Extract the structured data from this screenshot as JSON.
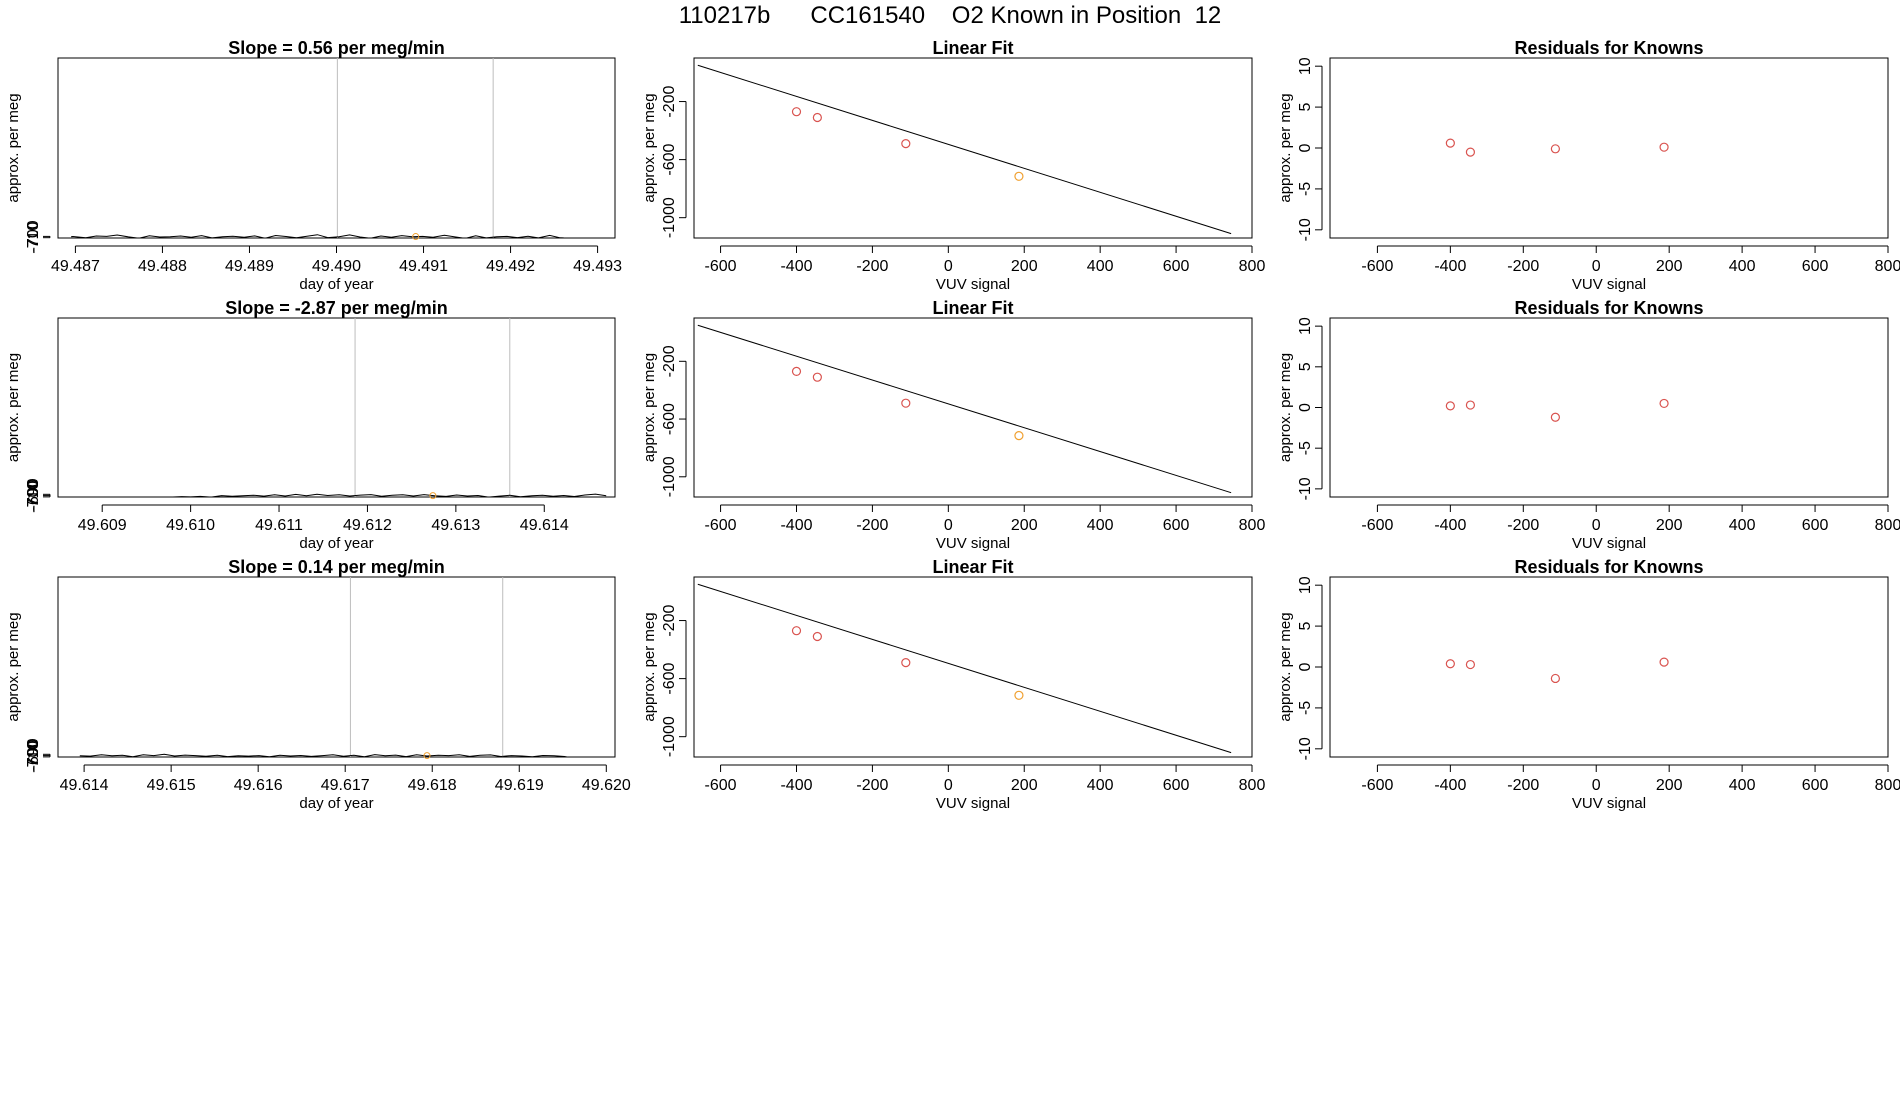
{
  "header": {
    "title": "110217b      CC161540    O2 Known in Position  12"
  },
  "colors": {
    "line": "#000000",
    "known_point": "#d9534f",
    "sample_point": "#f0a030",
    "marker_line": "#bdbdbd"
  },
  "chart_data": [
    {
      "type": "line",
      "title": "Slope =  0.56  per meg/min",
      "xlabel": "day of year",
      "ylabel": "approx. per meg",
      "xlim": [
        49.4868,
        49.4932
      ],
      "ylim": [
        -712.5,
        690.5
      ],
      "xticks": [
        "49.487",
        "49.488",
        "49.489",
        "49.490",
        "49.491",
        "49.492",
        "49.493"
      ],
      "xtick_values": [
        49.487,
        49.488,
        49.489,
        49.49,
        49.491,
        49.492,
        49.493
      ],
      "yticks": [
        "-710",
        "-700"
      ],
      "ytick_values": [
        -710,
        -700
      ],
      "vlines": [
        49.49001,
        49.4918
      ],
      "highlight_point": {
        "x": 49.49091,
        "y": -701.2
      },
      "x": [
        49.48695,
        49.48697,
        49.48712,
        49.48724,
        49.48736,
        49.48748,
        49.48761,
        49.48773,
        49.48785,
        49.48797,
        49.48809,
        49.48821,
        49.48833,
        49.48845,
        49.48857,
        49.48869,
        49.48881,
        49.48894,
        49.48906,
        49.48918,
        49.4893,
        49.48942,
        49.48954,
        49.48966,
        49.48978,
        49.4899,
        49.49003,
        49.49015,
        49.49027,
        49.49039,
        49.49051,
        49.49063,
        49.49075,
        49.49087,
        49.49099,
        49.49111,
        49.49124,
        49.49136,
        49.49148,
        49.4916,
        49.49172,
        49.49184,
        49.49196,
        49.49208,
        49.4922,
        49.49232,
        49.49245,
        49.49257,
        49.49261
      ],
      "y": [
        -702,
        -701,
        -711,
        -697,
        -700,
        -689,
        -704,
        -714,
        -695,
        -705,
        -702,
        -697,
        -707,
        -694,
        -712,
        -703,
        -699,
        -706,
        -696,
        -714,
        -693,
        -701,
        -711,
        -699,
        -687,
        -709,
        -703,
        -688,
        -705,
        -714,
        -697,
        -706,
        -694,
        -702,
        -700,
        -706,
        -691,
        -704,
        -716,
        -695,
        -712,
        -703,
        -700,
        -709,
        -699,
        -712,
        -692,
        -711,
        -712
      ]
    },
    {
      "type": "scatter",
      "title": "Linear Fit",
      "xlabel": "VUV signal",
      "ylabel": "approx. per meg",
      "xlim": [
        -670,
        800
      ],
      "ylim": [
        -1140,
        100
      ],
      "xticks": [
        "-600",
        "-400",
        "-200",
        "0",
        "200",
        "400",
        "600",
        "800"
      ],
      "xtick_values": [
        -600,
        -400,
        -200,
        0,
        200,
        400,
        600,
        800
      ],
      "yticks": [
        "-1000",
        "-600",
        "-200"
      ],
      "ytick_values": [
        -1000,
        -600,
        -200
      ],
      "fit_line": {
        "x": [
          -660,
          745
        ],
        "y": [
          50,
          -1110
        ]
      },
      "points": [
        {
          "x": -400,
          "y": -270,
          "kind": "known"
        },
        {
          "x": -345,
          "y": -310,
          "kind": "known"
        },
        {
          "x": -112,
          "y": -490,
          "kind": "known"
        },
        {
          "x": 186,
          "y": -715,
          "kind": "sample"
        }
      ]
    },
    {
      "type": "scatter",
      "title": "Residuals for Knowns",
      "xlabel": "VUV signal",
      "ylabel": "approx. per meg",
      "xlim": [
        -730,
        800
      ],
      "ylim": [
        -11,
        11
      ],
      "xticks": [
        "-600",
        "-400",
        "-200",
        "0",
        "200",
        "400",
        "600",
        "800"
      ],
      "xtick_values": [
        -600,
        -400,
        -200,
        0,
        200,
        400,
        600,
        800
      ],
      "yticks": [
        "-10",
        "-5",
        "0",
        "5",
        "10"
      ],
      "ytick_values": [
        -10,
        -5,
        0,
        5,
        10
      ],
      "points": [
        {
          "x": -400,
          "y": 0.6
        },
        {
          "x": -345,
          "y": -0.5
        },
        {
          "x": -112,
          "y": -0.1
        },
        {
          "x": 186,
          "y": 0.1
        }
      ]
    },
    {
      "type": "line",
      "title": "Slope =  -2.87  per meg/min",
      "xlabel": "day of year",
      "ylabel": "approx. per meg",
      "xlim": [
        49.6085,
        49.6148
      ],
      "ylim": [
        -711,
        688.2
      ],
      "xticks": [
        "49.609",
        "49.610",
        "49.611",
        "49.612",
        "49.613",
        "49.614"
      ],
      "xtick_values": [
        49.609,
        49.61,
        49.611,
        49.612,
        49.613,
        49.614
      ],
      "yticks": [
        "-710",
        "-700",
        "-690"
      ],
      "ytick_values": [
        -710,
        -700,
        -690
      ],
      "vlines": [
        49.61186,
        49.61361
      ],
      "highlight_point": {
        "x": 49.61274,
        "y": -700.2
      },
      "x": [
        49.6088,
        49.6098,
        49.6099,
        49.61,
        49.61011,
        49.61023,
        49.61035,
        49.61047,
        49.61059,
        49.61071,
        49.61083,
        49.61095,
        49.61107,
        49.61119,
        49.61131,
        49.61143,
        49.61155,
        49.61168,
        49.6118,
        49.61192,
        49.61204,
        49.61216,
        49.61228,
        49.6124,
        49.61252,
        49.61264,
        49.61276,
        49.61289,
        49.61301,
        49.61313,
        49.61325,
        49.61337,
        49.61349,
        49.61361,
        49.61373,
        49.61386,
        49.61398,
        49.6141,
        49.61422,
        49.61434,
        49.61446,
        49.61458,
        49.6147
      ],
      "y": [
        -711,
        -711,
        -708,
        -710,
        -706,
        -712,
        -700,
        -705,
        -701,
        -697,
        -704,
        -694,
        -703,
        -691,
        -702,
        -689,
        -699,
        -693,
        -703,
        -696,
        -692,
        -705,
        -698,
        -694,
        -703,
        -692,
        -701,
        -706,
        -695,
        -703,
        -699,
        -712,
        -704,
        -698,
        -709,
        -702,
        -697,
        -705,
        -699,
        -707,
        -695,
        -688,
        -701
      ]
    },
    {
      "type": "scatter",
      "title": "Linear Fit",
      "xlabel": "VUV signal",
      "ylabel": "approx. per meg",
      "xlim": [
        -670,
        800
      ],
      "ylim": [
        -1140,
        100
      ],
      "xticks": [
        "-600",
        "-400",
        "-200",
        "0",
        "200",
        "400",
        "600",
        "800"
      ],
      "xtick_values": [
        -600,
        -400,
        -200,
        0,
        200,
        400,
        600,
        800
      ],
      "yticks": [
        "-1000",
        "-600",
        "-200"
      ],
      "ytick_values": [
        -1000,
        -600,
        -200
      ],
      "fit_line": {
        "x": [
          -660,
          745
        ],
        "y": [
          50,
          -1110
        ]
      },
      "points": [
        {
          "x": -400,
          "y": -270,
          "kind": "known"
        },
        {
          "x": -345,
          "y": -310,
          "kind": "known"
        },
        {
          "x": -112,
          "y": -490,
          "kind": "known"
        },
        {
          "x": 186,
          "y": -715,
          "kind": "sample"
        }
      ]
    },
    {
      "type": "scatter",
      "title": "Residuals for Knowns",
      "xlabel": "VUV signal",
      "ylabel": "approx. per meg",
      "xlim": [
        -730,
        800
      ],
      "ylim": [
        -11,
        11
      ],
      "xticks": [
        "-600",
        "-400",
        "-200",
        "0",
        "200",
        "400",
        "600",
        "800"
      ],
      "xtick_values": [
        -600,
        -400,
        -200,
        0,
        200,
        400,
        600,
        800
      ],
      "yticks": [
        "-10",
        "-5",
        "0",
        "5",
        "10"
      ],
      "ytick_values": [
        -10,
        -5,
        0,
        5,
        10
      ],
      "points": [
        {
          "x": -400,
          "y": 0.2
        },
        {
          "x": -345,
          "y": 0.3
        },
        {
          "x": -112,
          "y": -1.2
        },
        {
          "x": 186,
          "y": 0.5
        }
      ]
    },
    {
      "type": "line",
      "title": "Slope =  0.14  per meg/min",
      "xlabel": "day of year",
      "ylabel": "approx. per meg",
      "xlim": [
        49.6137,
        49.6201
      ],
      "ylim": [
        -711,
        688.3
      ],
      "xticks": [
        "49.614",
        "49.615",
        "49.616",
        "49.617",
        "49.618",
        "49.619",
        "49.620"
      ],
      "xtick_values": [
        49.614,
        49.615,
        49.616,
        49.617,
        49.618,
        49.619,
        49.62
      ],
      "yticks": [
        "-710",
        "-700",
        "-690"
      ],
      "ytick_values": [
        -710,
        -700,
        -690
      ],
      "vlines": [
        49.61706,
        49.61881
      ],
      "highlight_point": {
        "x": 49.61794,
        "y": -700
      },
      "x": [
        49.61395,
        49.61407,
        49.6142,
        49.61432,
        49.61444,
        49.61456,
        49.61468,
        49.6148,
        49.61492,
        49.61504,
        49.61516,
        49.61528,
        49.6154,
        49.61553,
        49.61565,
        49.61577,
        49.61589,
        49.61601,
        49.61613,
        49.61625,
        49.61637,
        49.61649,
        49.61661,
        49.61674,
        49.61686,
        49.61698,
        49.6171,
        49.61722,
        49.61734,
        49.61746,
        49.61758,
        49.6177,
        49.61782,
        49.61794,
        49.61807,
        49.61819,
        49.61831,
        49.61843,
        49.61855,
        49.61867,
        49.61879,
        49.61891,
        49.61903,
        49.61915,
        49.61927,
        49.6194,
        49.61952,
        49.61955
      ],
      "y": [
        -701,
        -704,
        -694,
        -702,
        -698,
        -709,
        -693,
        -700,
        -689,
        -703,
        -696,
        -700,
        -705,
        -697,
        -708,
        -702,
        -704,
        -700,
        -709,
        -697,
        -703,
        -699,
        -706,
        -700,
        -693,
        -705,
        -697,
        -709,
        -692,
        -701,
        -696,
        -708,
        -694,
        -703,
        -697,
        -700,
        -694,
        -706,
        -698,
        -695,
        -707,
        -700,
        -703,
        -709,
        -699,
        -702,
        -707,
        -711
      ]
    },
    {
      "type": "scatter",
      "title": "Linear Fit",
      "xlabel": "VUV signal",
      "ylabel": "approx. per meg",
      "xlim": [
        -670,
        800
      ],
      "ylim": [
        -1140,
        100
      ],
      "xticks": [
        "-600",
        "-400",
        "-200",
        "0",
        "200",
        "400",
        "600",
        "800"
      ],
      "xtick_values": [
        -600,
        -400,
        -200,
        0,
        200,
        400,
        600,
        800
      ],
      "yticks": [
        "-1000",
        "-600",
        "-200"
      ],
      "ytick_values": [
        -1000,
        -600,
        -200
      ],
      "fit_line": {
        "x": [
          -660,
          745
        ],
        "y": [
          50,
          -1110
        ]
      },
      "points": [
        {
          "x": -400,
          "y": -270,
          "kind": "known"
        },
        {
          "x": -345,
          "y": -310,
          "kind": "known"
        },
        {
          "x": -112,
          "y": -490,
          "kind": "known"
        },
        {
          "x": 186,
          "y": -715,
          "kind": "sample"
        }
      ]
    },
    {
      "type": "scatter",
      "title": "Residuals for Knowns",
      "xlabel": "VUV signal",
      "ylabel": "approx. per meg",
      "xlim": [
        -730,
        800
      ],
      "ylim": [
        -11,
        11
      ],
      "xticks": [
        "-600",
        "-400",
        "-200",
        "0",
        "200",
        "400",
        "600",
        "800"
      ],
      "xtick_values": [
        -600,
        -400,
        -200,
        0,
        200,
        400,
        600,
        800
      ],
      "yticks": [
        "-10",
        "-5",
        "0",
        "5",
        "10"
      ],
      "ytick_values": [
        -10,
        -5,
        0,
        5,
        10
      ],
      "points": [
        {
          "x": -400,
          "y": 0.4
        },
        {
          "x": -345,
          "y": 0.3
        },
        {
          "x": -112,
          "y": -1.4
        },
        {
          "x": 186,
          "y": 0.6
        }
      ]
    }
  ]
}
